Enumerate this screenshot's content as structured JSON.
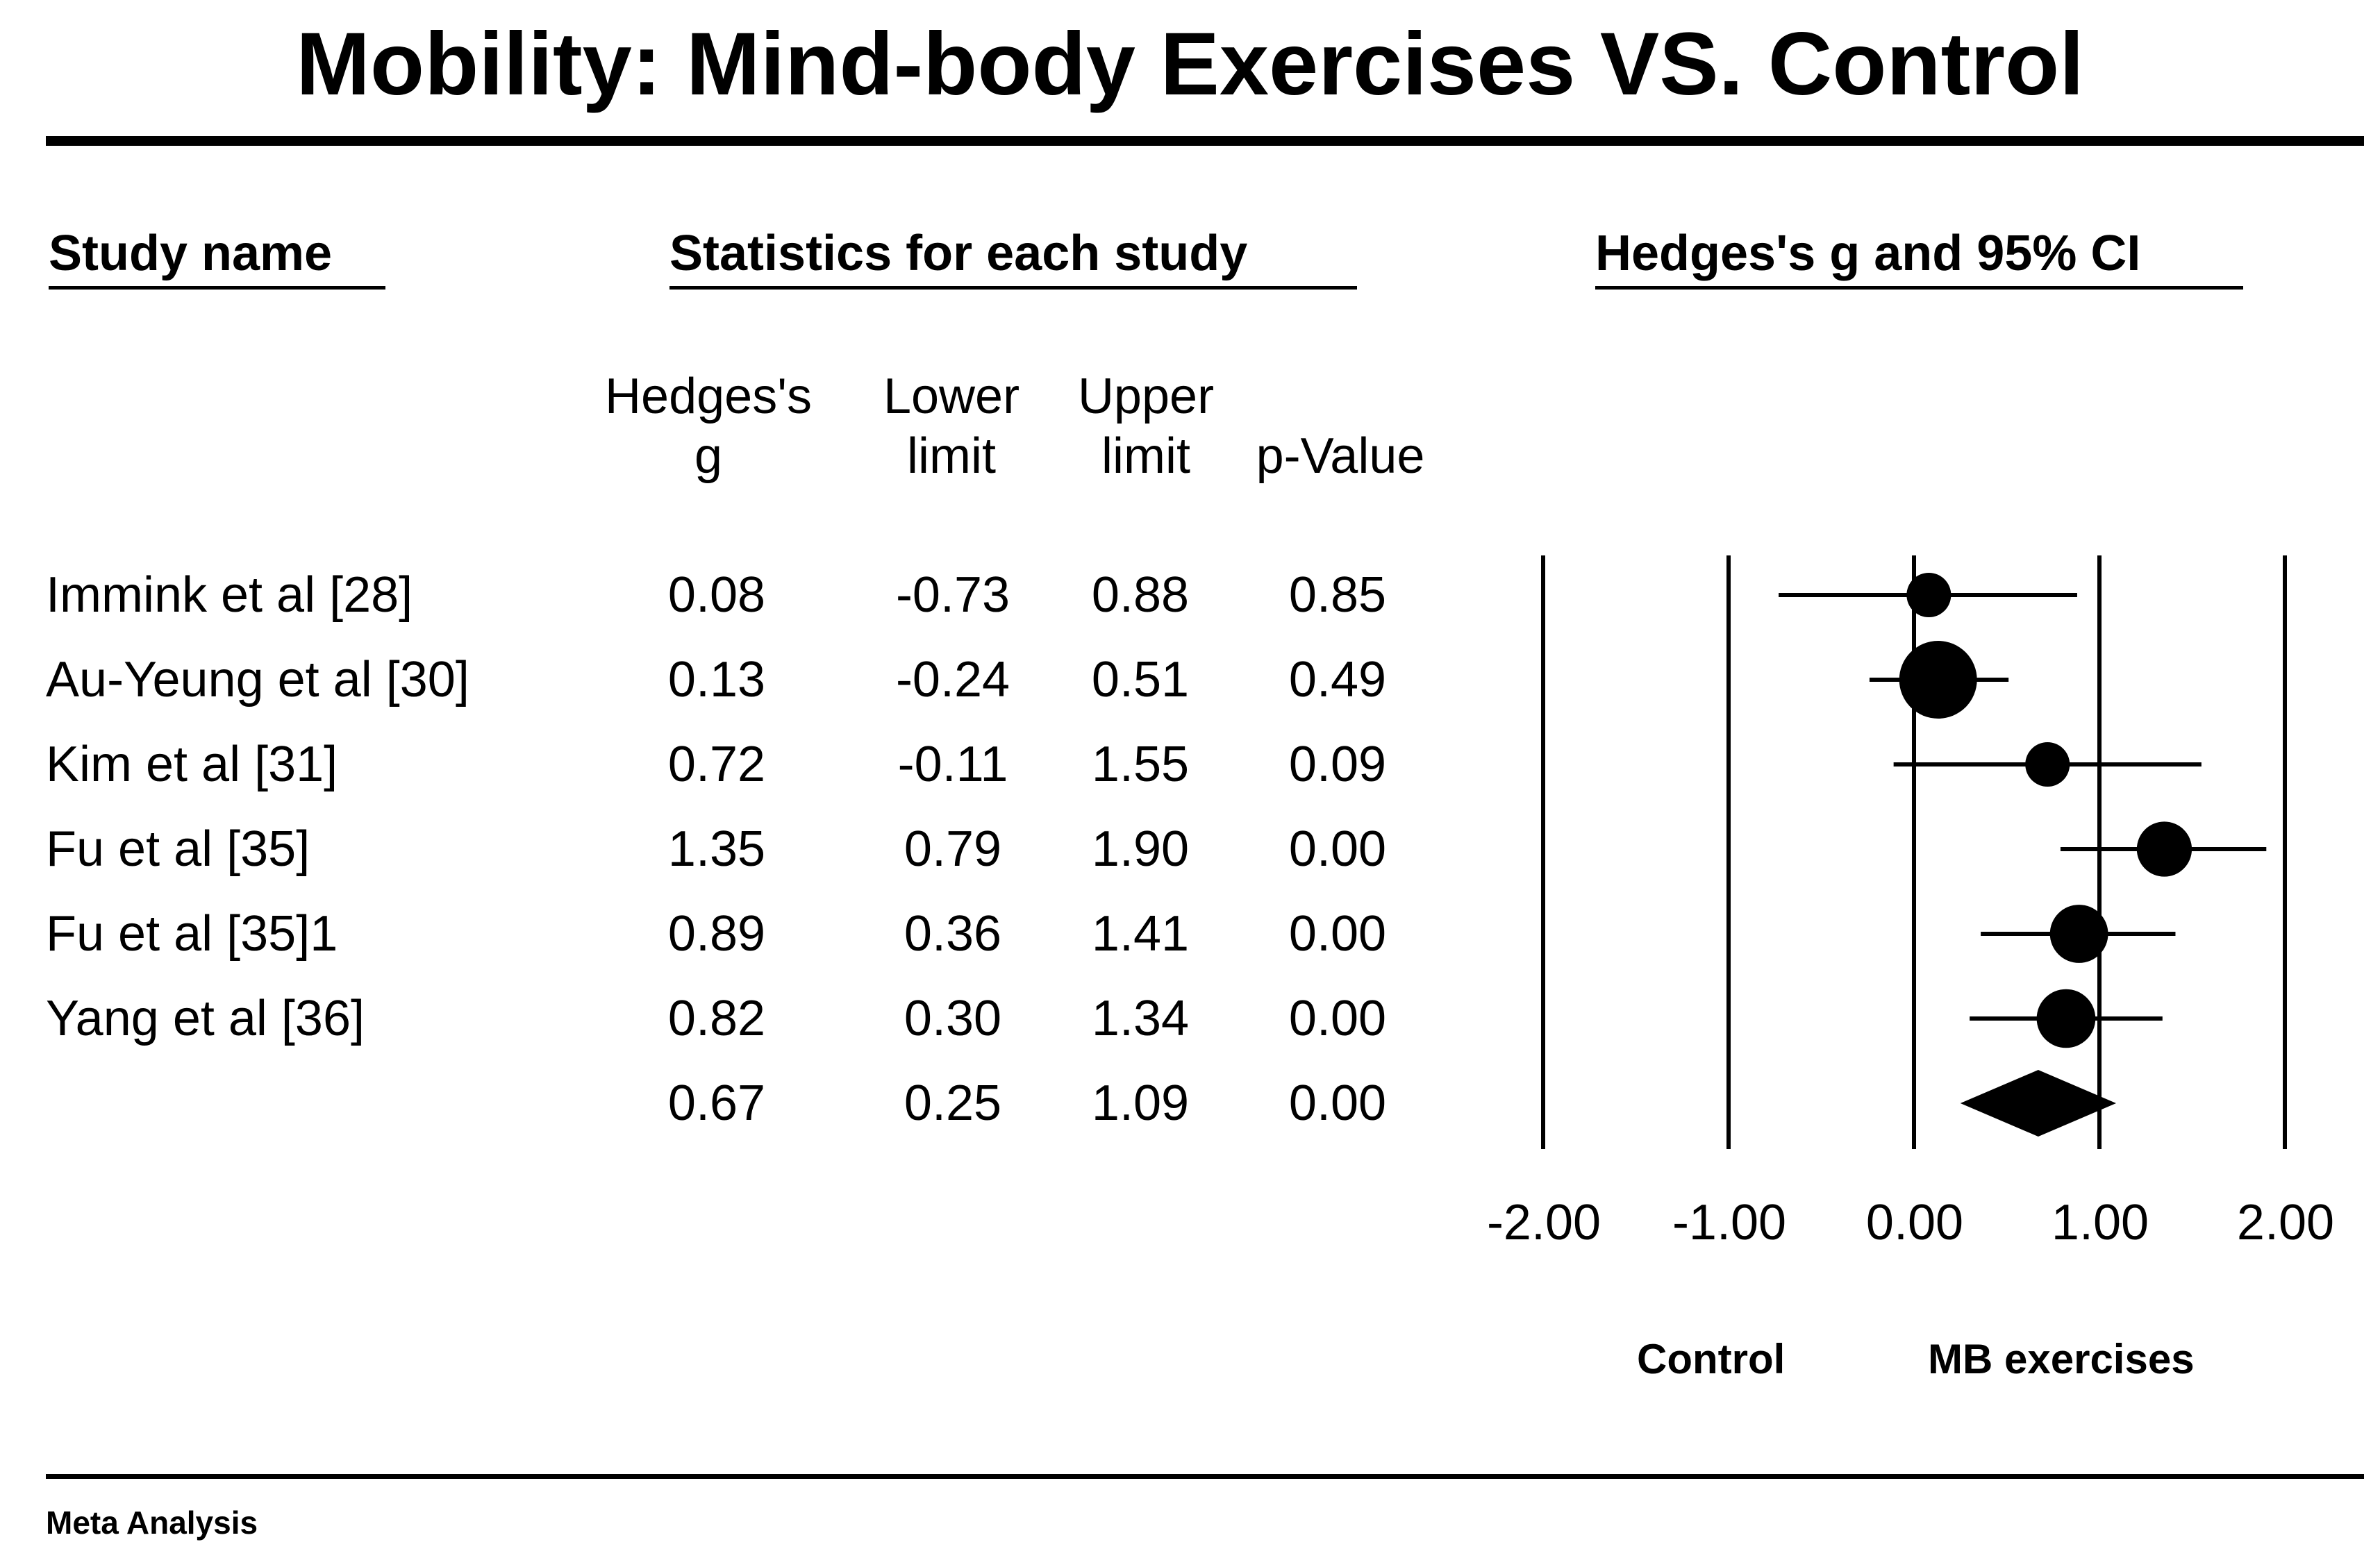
{
  "chart_data": {
    "type": "forest",
    "title": "Mobility: Mind-body Exercises VS. Control",
    "headers": {
      "study_name": "Study name",
      "statistics": "Statistics for each study",
      "plot": "Hedges's g and 95% CI"
    },
    "columns": [
      {
        "line1": "Hedges's",
        "line2": "g"
      },
      {
        "line1": "Lower",
        "line2": "limit"
      },
      {
        "line1": "Upper",
        "line2": "limit"
      },
      {
        "line1": "",
        "line2": "p-Value"
      }
    ],
    "studies": [
      {
        "name": "Immink et al [28]",
        "g": 0.08,
        "lower": -0.73,
        "upper": 0.88,
        "p": 0.85,
        "g_text": "0.08",
        "lower_text": "-0.73",
        "upper_text": "0.88",
        "p_text": "0.85"
      },
      {
        "name": "Au-Yeung et al [30]",
        "g": 0.13,
        "lower": -0.24,
        "upper": 0.51,
        "p": 0.49,
        "g_text": "0.13",
        "lower_text": "-0.24",
        "upper_text": "0.51",
        "p_text": "0.49"
      },
      {
        "name": "Kim et al [31]",
        "g": 0.72,
        "lower": -0.11,
        "upper": 1.55,
        "p": 0.09,
        "g_text": "0.72",
        "lower_text": "-0.11",
        "upper_text": "1.55",
        "p_text": "0.09"
      },
      {
        "name": "Fu et al [35]",
        "g": 1.35,
        "lower": 0.79,
        "upper": 1.9,
        "p": 0.0,
        "g_text": "1.35",
        "lower_text": "0.79",
        "upper_text": "1.90",
        "p_text": "0.00"
      },
      {
        "name": "Fu et al [35]1",
        "g": 0.89,
        "lower": 0.36,
        "upper": 1.41,
        "p": 0.0,
        "g_text": "0.89",
        "lower_text": "0.36",
        "upper_text": "1.41",
        "p_text": "0.00"
      },
      {
        "name": "Yang et al [36]",
        "g": 0.82,
        "lower": 0.3,
        "upper": 1.34,
        "p": 0.0,
        "g_text": "0.82",
        "lower_text": "0.30",
        "upper_text": "1.34",
        "p_text": "0.00"
      }
    ],
    "summary": {
      "g": 0.67,
      "lower": 0.25,
      "upper": 1.09,
      "p": 0.0,
      "g_text": "0.67",
      "lower_text": "0.25",
      "upper_text": "1.09",
      "p_text": "0.00"
    },
    "x_axis": {
      "ticks": [
        -2,
        -1,
        0,
        1,
        2
      ],
      "tick_labels": [
        "-2.00",
        "-1.00",
        "0.00",
        "1.00",
        "2.00"
      ],
      "xlim": [
        -2,
        2
      ]
    },
    "left_label": "Control",
    "right_label": "MB exercises",
    "footer": "Meta Analysis"
  }
}
